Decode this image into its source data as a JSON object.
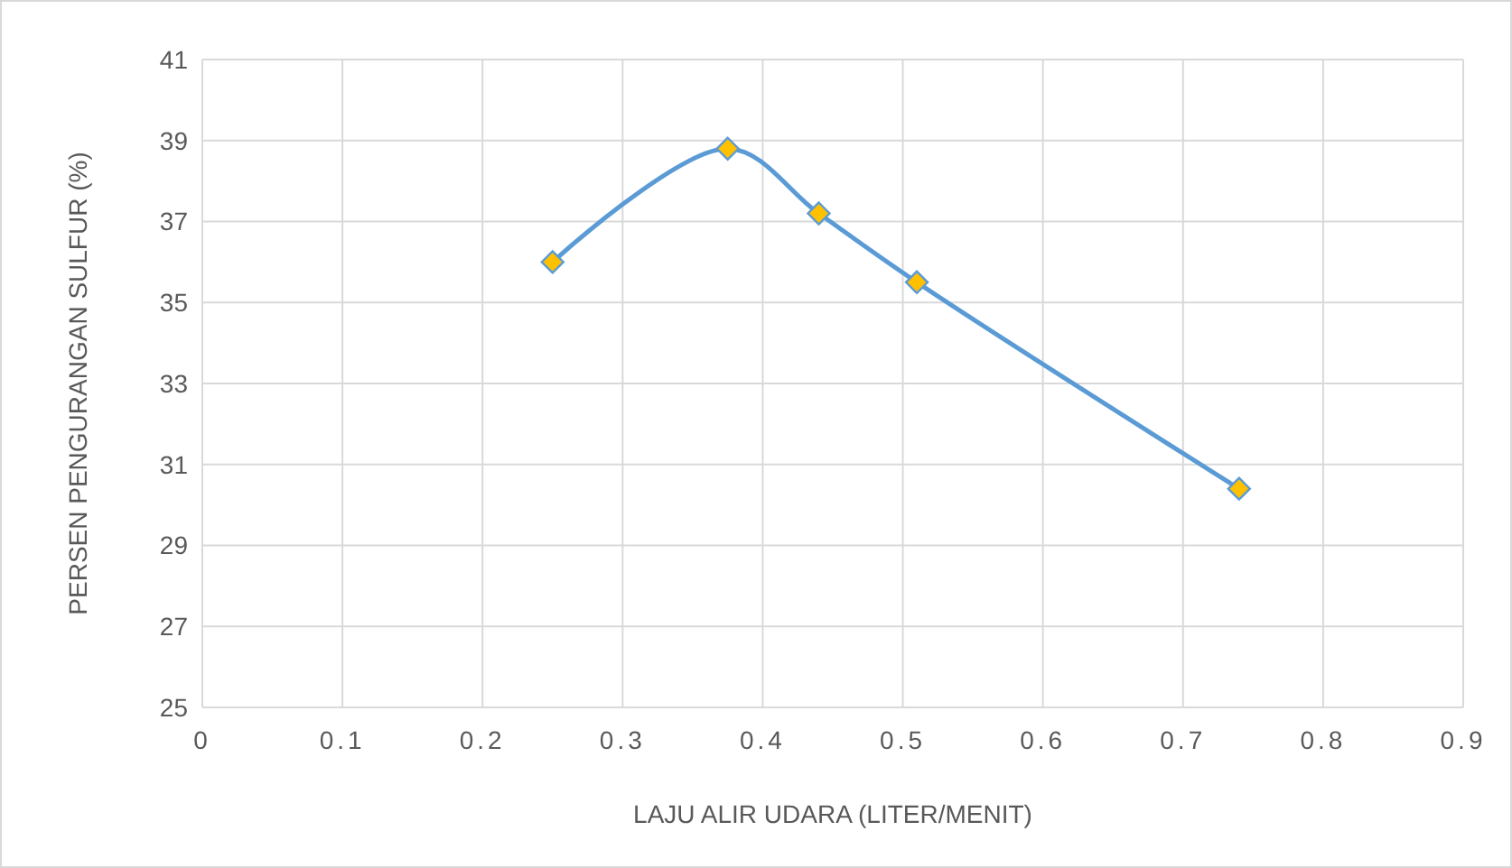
{
  "chart_data": {
    "type": "line",
    "xlabel": "LAJU ALIR UDARA (LITER/MENIT)",
    "ylabel": "PERSEN PENGURANGAN SULFUR (%)",
    "series": [
      {
        "color": "#5b9bd5",
        "x": [
          0.25,
          0.375,
          0.44,
          0.51,
          0.74
        ],
        "values": [
          36.0,
          38.8,
          37.2,
          35.5,
          30.4
        ]
      }
    ],
    "marker": "diamond",
    "xlim": [
      0,
      0.9
    ],
    "xticks": [
      0,
      0.1,
      0.2,
      0.3,
      0.4,
      0.5,
      0.6,
      0.7,
      0.8,
      0.9
    ],
    "ylim": [
      25,
      41
    ],
    "yticks": [
      25,
      27,
      29,
      31,
      33,
      35,
      37,
      39,
      41
    ],
    "grid": true
  }
}
